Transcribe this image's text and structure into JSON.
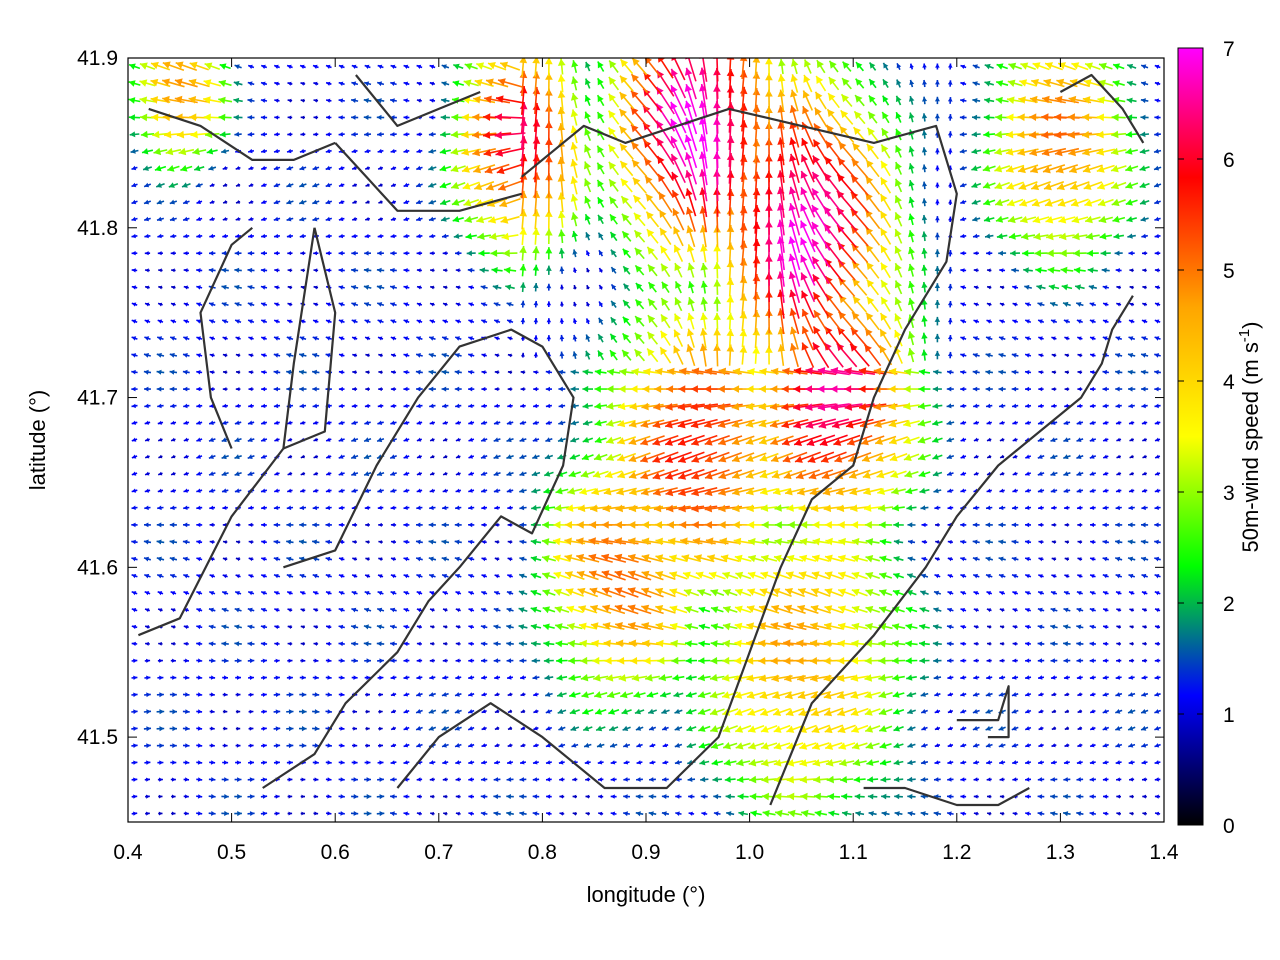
{
  "chart_data": {
    "type": "quiver",
    "xlabel": "longitude (°)",
    "ylabel": "latitude (°)",
    "xlim": [
      0.4,
      1.4
    ],
    "ylim": [
      41.45,
      41.9
    ],
    "xticks": [
      "0.4",
      "0.5",
      "0.6",
      "0.7",
      "0.8",
      "0.9",
      "1.0",
      "1.1",
      "1.2",
      "1.3",
      "1.4"
    ],
    "xtick_values": [
      0.4,
      0.5,
      0.6,
      0.7,
      0.8,
      0.9,
      1.0,
      1.1,
      1.2,
      1.3,
      1.4
    ],
    "yticks": [
      "41.5",
      "41.6",
      "41.7",
      "41.8",
      "41.9"
    ],
    "ytick_values": [
      41.5,
      41.6,
      41.7,
      41.8,
      41.9
    ],
    "grid": false,
    "colorbar": {
      "label": "50m-wind speed (m s",
      "label_sup": "-1",
      "label_close": ")",
      "range": [
        0,
        7
      ],
      "ticks": [
        "0",
        "1",
        "2",
        "3",
        "4",
        "5",
        "6",
        "7"
      ],
      "tick_values": [
        0,
        1,
        2,
        3,
        4,
        5,
        6,
        7
      ],
      "palette": [
        "#000000",
        "#0000ff",
        "#00ff00",
        "#ffff00",
        "#ffa500",
        "#ff0000",
        "#ff00ff"
      ]
    },
    "wind_field": {
      "grid_step_lon": 0.0125,
      "grid_step_lat": 0.01,
      "speed_centers": [
        {
          "lon": 0.95,
          "lat": 41.86,
          "speed": 7.2,
          "radius": 0.09
        },
        {
          "lon": 1.05,
          "lat": 41.8,
          "speed": 7.0,
          "radius": 0.1
        },
        {
          "lon": 1.08,
          "lat": 41.7,
          "speed": 6.5,
          "radius": 0.09
        },
        {
          "lon": 0.95,
          "lat": 41.67,
          "speed": 5.8,
          "radius": 0.1
        },
        {
          "lon": 0.78,
          "lat": 41.85,
          "speed": 6.2,
          "radius": 0.07
        },
        {
          "lon": 0.88,
          "lat": 41.6,
          "speed": 5.2,
          "radius": 0.09
        },
        {
          "lon": 1.05,
          "lat": 41.55,
          "speed": 4.5,
          "radius": 0.12
        },
        {
          "lon": 1.3,
          "lat": 41.85,
          "speed": 5.0,
          "radius": 0.08
        },
        {
          "lon": 0.45,
          "lat": 41.88,
          "speed": 5.0,
          "radius": 0.05
        }
      ],
      "background_speed": 1.2
    },
    "coastlines": [
      [
        [
          0.42,
          41.87
        ],
        [
          0.47,
          41.86
        ],
        [
          0.52,
          41.84
        ],
        [
          0.56,
          41.84
        ],
        [
          0.6,
          41.85
        ]
      ],
      [
        [
          0.6,
          41.85
        ],
        [
          0.63,
          41.83
        ],
        [
          0.66,
          41.81
        ],
        [
          0.72,
          41.81
        ],
        [
          0.78,
          41.82
        ]
      ],
      [
        [
          0.62,
          41.89
        ],
        [
          0.66,
          41.86
        ],
        [
          0.7,
          41.87
        ],
        [
          0.74,
          41.88
        ]
      ],
      [
        [
          0.41,
          41.56
        ],
        [
          0.45,
          41.57
        ],
        [
          0.5,
          41.63
        ],
        [
          0.55,
          41.67
        ],
        [
          0.56,
          41.72
        ],
        [
          0.58,
          41.8
        ]
      ],
      [
        [
          0.58,
          41.8
        ],
        [
          0.6,
          41.75
        ],
        [
          0.59,
          41.68
        ],
        [
          0.55,
          41.67
        ]
      ],
      [
        [
          0.5,
          41.67
        ],
        [
          0.48,
          41.7
        ],
        [
          0.47,
          41.75
        ],
        [
          0.5,
          41.79
        ],
        [
          0.52,
          41.8
        ]
      ],
      [
        [
          0.53,
          41.47
        ],
        [
          0.58,
          41.49
        ],
        [
          0.61,
          41.52
        ],
        [
          0.66,
          41.55
        ],
        [
          0.69,
          41.58
        ],
        [
          0.72,
          41.6
        ],
        [
          0.76,
          41.63
        ],
        [
          0.79,
          41.62
        ],
        [
          0.82,
          41.66
        ],
        [
          0.83,
          41.7
        ],
        [
          0.8,
          41.73
        ],
        [
          0.77,
          41.74
        ],
        [
          0.72,
          41.73
        ],
        [
          0.68,
          41.7
        ],
        [
          0.64,
          41.66
        ],
        [
          0.6,
          41.61
        ],
        [
          0.55,
          41.6
        ]
      ],
      [
        [
          0.66,
          41.47
        ],
        [
          0.7,
          41.5
        ],
        [
          0.75,
          41.52
        ],
        [
          0.8,
          41.5
        ],
        [
          0.86,
          41.47
        ],
        [
          0.92,
          41.47
        ],
        [
          0.97,
          41.5
        ],
        [
          1.0,
          41.55
        ],
        [
          1.03,
          41.6
        ],
        [
          1.06,
          41.64
        ],
        [
          1.1,
          41.66
        ],
        [
          1.12,
          41.7
        ],
        [
          1.15,
          41.74
        ],
        [
          1.19,
          41.78
        ],
        [
          1.2,
          41.82
        ],
        [
          1.18,
          41.86
        ],
        [
          1.12,
          41.85
        ],
        [
          1.05,
          41.86
        ],
        [
          0.98,
          41.87
        ],
        [
          0.93,
          41.86
        ],
        [
          0.88,
          41.85
        ],
        [
          0.84,
          41.86
        ],
        [
          0.78,
          41.83
        ]
      ],
      [
        [
          1.02,
          41.46
        ],
        [
          1.06,
          41.52
        ],
        [
          1.12,
          41.56
        ],
        [
          1.17,
          41.6
        ],
        [
          1.2,
          41.63
        ],
        [
          1.24,
          41.66
        ],
        [
          1.28,
          41.68
        ],
        [
          1.32,
          41.7
        ],
        [
          1.34,
          41.72
        ],
        [
          1.35,
          41.74
        ],
        [
          1.37,
          41.76
        ]
      ],
      [
        [
          1.11,
          41.47
        ],
        [
          1.15,
          41.47
        ],
        [
          1.2,
          41.46
        ],
        [
          1.24,
          41.46
        ],
        [
          1.27,
          41.47
        ]
      ],
      [
        [
          1.2,
          41.51
        ],
        [
          1.24,
          41.51
        ],
        [
          1.25,
          41.53
        ],
        [
          1.25,
          41.5
        ],
        [
          1.23,
          41.5
        ]
      ],
      [
        [
          1.3,
          41.88
        ],
        [
          1.33,
          41.89
        ],
        [
          1.36,
          41.87
        ],
        [
          1.38,
          41.85
        ]
      ]
    ]
  }
}
